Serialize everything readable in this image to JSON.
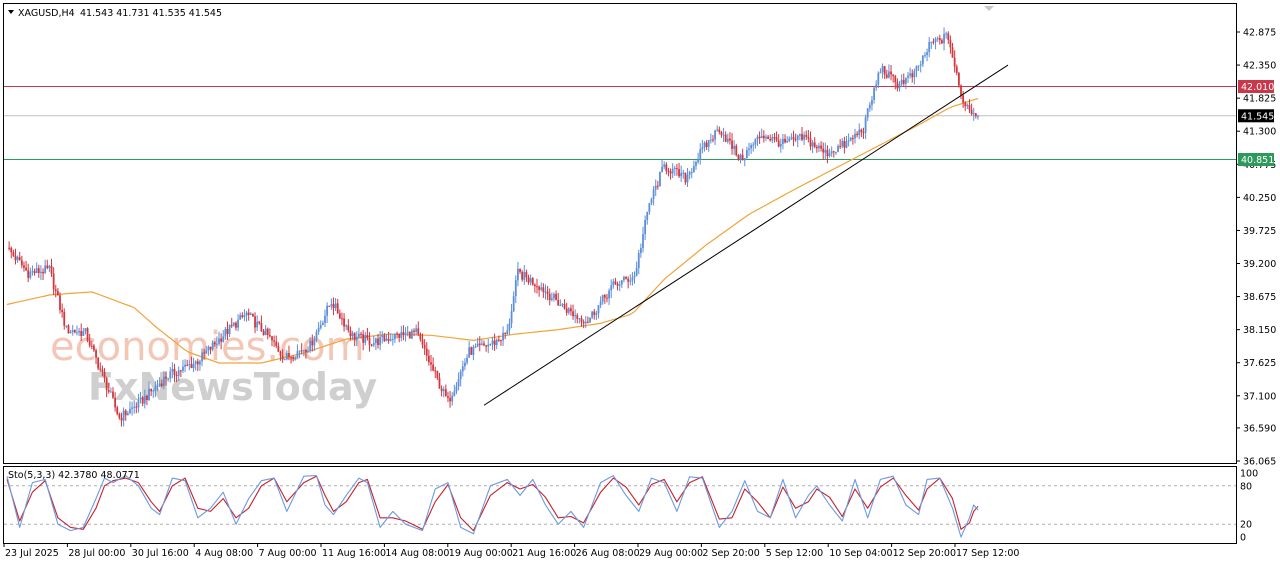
{
  "header": {
    "symbol": "XAGUSD,H4",
    "ohlc": "41.543 41.731 41.535 41.545"
  },
  "watermark": {
    "line1": "economies.com",
    "line2": "FxNewsToday"
  },
  "colors": {
    "bull": "#5b8fd9",
    "bear": "#d4343c",
    "ma": "#f0a43a",
    "resistance": "#c8374a",
    "support": "#2d9a5c",
    "stoch_main": "#6a9be0",
    "stoch_signal": "#c8202a",
    "price_box": "#000000"
  },
  "chart_data": [
    {
      "type": "candlestick",
      "symbol": "XAGUSD",
      "timeframe": "H4",
      "open": 41.543,
      "high": 41.731,
      "low": 41.535,
      "close": 41.545,
      "ylim": [
        36.065,
        43.1
      ],
      "y_ticks": [
        "42.875",
        "42.350",
        "41.825",
        "41.300",
        "40.775",
        "40.250",
        "39.725",
        "39.200",
        "38.675",
        "38.150",
        "37.625",
        "37.100",
        "36.590",
        "36.065"
      ],
      "x_ticks": [
        "23 Jul 2025",
        "28 Jul 00:00",
        "30 Jul 16:00",
        "4 Aug 08:00",
        "7 Aug 00:00",
        "11 Aug 16:00",
        "14 Aug 08:00",
        "19 Aug 00:00",
        "21 Aug 16:00",
        "26 Aug 08:00",
        "29 Aug 00:00",
        "2 Sep 20:00",
        "5 Sep 12:00",
        "10 Sep 04:00",
        "12 Sep 20:00",
        "17 Sep 12:00"
      ],
      "current_price": "41.545",
      "resistance_level": "42.010",
      "support_level": "40.851",
      "trendline": [
        {
          "bar": 0,
          "price": 36.95
        },
        {
          "bar": 1,
          "price": 42.35
        }
      ],
      "price_path": [
        [
          0,
          39.45
        ],
        [
          10,
          39.05
        ],
        [
          20,
          39.1
        ],
        [
          28,
          38.15
        ],
        [
          37,
          38.1
        ],
        [
          43,
          37.6
        ],
        [
          53,
          36.75
        ],
        [
          63,
          37.0
        ],
        [
          75,
          37.4
        ],
        [
          90,
          37.65
        ],
        [
          103,
          38.1
        ],
        [
          113,
          38.4
        ],
        [
          123,
          38.05
        ],
        [
          131,
          37.7
        ],
        [
          143,
          37.9
        ],
        [
          153,
          38.6
        ],
        [
          163,
          38.05
        ],
        [
          173,
          37.95
        ],
        [
          183,
          38.05
        ],
        [
          193,
          38.1
        ],
        [
          203,
          37.35
        ],
        [
          208,
          37.0
        ],
        [
          218,
          37.8
        ],
        [
          230,
          37.95
        ],
        [
          236,
          38.1
        ],
        [
          241,
          39.05
        ],
        [
          251,
          38.85
        ],
        [
          261,
          38.55
        ],
        [
          269,
          38.35
        ],
        [
          274,
          38.3
        ],
        [
          286,
          38.85
        ],
        [
          296,
          39.0
        ],
        [
          303,
          40.15
        ],
        [
          310,
          40.75
        ],
        [
          320,
          40.55
        ],
        [
          328,
          41.0
        ],
        [
          336,
          41.35
        ],
        [
          346,
          40.85
        ],
        [
          356,
          41.25
        ],
        [
          366,
          41.1
        ],
        [
          376,
          41.2
        ],
        [
          386,
          40.95
        ],
        [
          396,
          41.1
        ],
        [
          404,
          41.35
        ],
        [
          412,
          42.3
        ],
        [
          420,
          42.05
        ],
        [
          428,
          42.2
        ],
        [
          436,
          42.7
        ],
        [
          444,
          42.8
        ],
        [
          450,
          41.85
        ],
        [
          454,
          41.65
        ],
        [
          458,
          41.55
        ]
      ],
      "ma_path": [
        [
          0,
          38.55
        ],
        [
          20,
          38.7
        ],
        [
          40,
          38.75
        ],
        [
          60,
          38.5
        ],
        [
          70,
          38.2
        ],
        [
          85,
          37.8
        ],
        [
          100,
          37.62
        ],
        [
          120,
          37.62
        ],
        [
          140,
          37.78
        ],
        [
          160,
          38.0
        ],
        [
          180,
          38.08
        ],
        [
          200,
          38.06
        ],
        [
          220,
          37.98
        ],
        [
          240,
          38.08
        ],
        [
          260,
          38.15
        ],
        [
          280,
          38.25
        ],
        [
          295,
          38.4
        ],
        [
          310,
          38.95
        ],
        [
          330,
          39.5
        ],
        [
          350,
          39.98
        ],
        [
          370,
          40.35
        ],
        [
          390,
          40.7
        ],
        [
          410,
          41.05
        ],
        [
          430,
          41.4
        ],
        [
          445,
          41.68
        ],
        [
          458,
          41.82
        ]
      ]
    },
    {
      "type": "line",
      "indicator": "Sto(5,3,3)",
      "label": "Sto(5,3,3) 42.3780 48.0771",
      "main_value": 42.378,
      "signal_value": 48.0771,
      "ylim": [
        0,
        100
      ],
      "y_ticks": [
        "100",
        "80",
        "20",
        "0"
      ],
      "levels": [
        80,
        20
      ],
      "main_path": [
        [
          0,
          95
        ],
        [
          6,
          15
        ],
        [
          12,
          85
        ],
        [
          18,
          90
        ],
        [
          24,
          20
        ],
        [
          30,
          10
        ],
        [
          36,
          15
        ],
        [
          42,
          60
        ],
        [
          46,
          92
        ],
        [
          50,
          85
        ],
        [
          56,
          96
        ],
        [
          62,
          80
        ],
        [
          68,
          45
        ],
        [
          72,
          35
        ],
        [
          78,
          92
        ],
        [
          84,
          88
        ],
        [
          90,
          30
        ],
        [
          96,
          45
        ],
        [
          102,
          70
        ],
        [
          108,
          20
        ],
        [
          114,
          60
        ],
        [
          120,
          88
        ],
        [
          126,
          92
        ],
        [
          132,
          40
        ],
        [
          140,
          95
        ],
        [
          146,
          96
        ],
        [
          150,
          50
        ],
        [
          154,
          35
        ],
        [
          160,
          65
        ],
        [
          166,
          92
        ],
        [
          170,
          85
        ],
        [
          176,
          15
        ],
        [
          182,
          40
        ],
        [
          188,
          20
        ],
        [
          196,
          10
        ],
        [
          202,
          75
        ],
        [
          208,
          85
        ],
        [
          214,
          15
        ],
        [
          220,
          5
        ],
        [
          228,
          80
        ],
        [
          236,
          90
        ],
        [
          242,
          65
        ],
        [
          248,
          90
        ],
        [
          254,
          50
        ],
        [
          260,
          20
        ],
        [
          266,
          40
        ],
        [
          272,
          15
        ],
        [
          280,
          85
        ],
        [
          286,
          96
        ],
        [
          292,
          65
        ],
        [
          298,
          40
        ],
        [
          304,
          92
        ],
        [
          310,
          85
        ],
        [
          316,
          40
        ],
        [
          322,
          94
        ],
        [
          328,
          92
        ],
        [
          336,
          15
        ],
        [
          342,
          40
        ],
        [
          348,
          88
        ],
        [
          354,
          40
        ],
        [
          360,
          30
        ],
        [
          366,
          90
        ],
        [
          372,
          30
        ],
        [
          378,
          65
        ],
        [
          382,
          80
        ],
        [
          388,
          50
        ],
        [
          394,
          25
        ],
        [
          400,
          90
        ],
        [
          406,
          30
        ],
        [
          412,
          90
        ],
        [
          418,
          95
        ],
        [
          424,
          50
        ],
        [
          430,
          35
        ],
        [
          434,
          90
        ],
        [
          440,
          92
        ],
        [
          446,
          45
        ],
        [
          450,
          0
        ],
        [
          454,
          30
        ],
        [
          456,
          50
        ],
        [
          458,
          42
        ]
      ],
      "signal_path": [
        [
          0,
          90
        ],
        [
          6,
          25
        ],
        [
          12,
          70
        ],
        [
          18,
          88
        ],
        [
          24,
          30
        ],
        [
          30,
          15
        ],
        [
          36,
          12
        ],
        [
          42,
          45
        ],
        [
          46,
          80
        ],
        [
          50,
          88
        ],
        [
          56,
          92
        ],
        [
          62,
          85
        ],
        [
          68,
          55
        ],
        [
          72,
          40
        ],
        [
          78,
          80
        ],
        [
          84,
          92
        ],
        [
          90,
          45
        ],
        [
          96,
          40
        ],
        [
          102,
          60
        ],
        [
          108,
          30
        ],
        [
          114,
          45
        ],
        [
          120,
          80
        ],
        [
          126,
          92
        ],
        [
          132,
          55
        ],
        [
          140,
          85
        ],
        [
          146,
          95
        ],
        [
          150,
          65
        ],
        [
          154,
          40
        ],
        [
          160,
          55
        ],
        [
          166,
          85
        ],
        [
          170,
          90
        ],
        [
          176,
          30
        ],
        [
          182,
          30
        ],
        [
          188,
          25
        ],
        [
          196,
          12
        ],
        [
          202,
          55
        ],
        [
          208,
          82
        ],
        [
          214,
          30
        ],
        [
          220,
          10
        ],
        [
          228,
          65
        ],
        [
          236,
          85
        ],
        [
          242,
          75
        ],
        [
          248,
          82
        ],
        [
          254,
          62
        ],
        [
          260,
          30
        ],
        [
          266,
          32
        ],
        [
          272,
          22
        ],
        [
          280,
          70
        ],
        [
          286,
          92
        ],
        [
          292,
          78
        ],
        [
          298,
          50
        ],
        [
          304,
          82
        ],
        [
          310,
          90
        ],
        [
          316,
          55
        ],
        [
          322,
          85
        ],
        [
          328,
          94
        ],
        [
          336,
          28
        ],
        [
          342,
          30
        ],
        [
          348,
          75
        ],
        [
          354,
          55
        ],
        [
          360,
          30
        ],
        [
          366,
          78
        ],
        [
          372,
          45
        ],
        [
          378,
          55
        ],
        [
          382,
          75
        ],
        [
          388,
          62
        ],
        [
          394,
          32
        ],
        [
          400,
          75
        ],
        [
          406,
          45
        ],
        [
          412,
          78
        ],
        [
          418,
          92
        ],
        [
          424,
          65
        ],
        [
          430,
          42
        ],
        [
          434,
          75
        ],
        [
          440,
          92
        ],
        [
          446,
          60
        ],
        [
          450,
          12
        ],
        [
          454,
          22
        ],
        [
          456,
          40
        ],
        [
          458,
          48
        ]
      ]
    }
  ]
}
